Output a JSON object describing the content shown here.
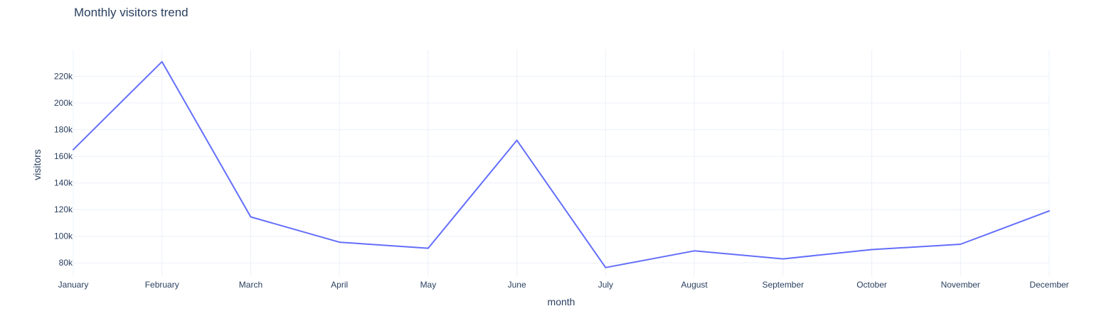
{
  "chart_data": {
    "type": "line",
    "title": "Monthly visitors trend",
    "xlabel": "month",
    "ylabel": "visitors",
    "categories": [
      "January",
      "February",
      "March",
      "April",
      "May",
      "June",
      "July",
      "August",
      "September",
      "October",
      "November",
      "December"
    ],
    "series": [
      {
        "values": [
          165000,
          231000,
          114500,
          95500,
          91000,
          172000,
          76500,
          89000,
          83000,
          90000,
          94000,
          119000
        ],
        "color": "#636efa"
      }
    ],
    "ylim": [
      70000,
      240000
    ],
    "yticks": [
      80000,
      100000,
      120000,
      140000,
      160000,
      180000,
      200000,
      220000
    ],
    "ytick_labels": [
      "80k",
      "100k",
      "120k",
      "140k",
      "160k",
      "180k",
      "200k",
      "220k"
    ],
    "grid": true,
    "legend": "none"
  }
}
